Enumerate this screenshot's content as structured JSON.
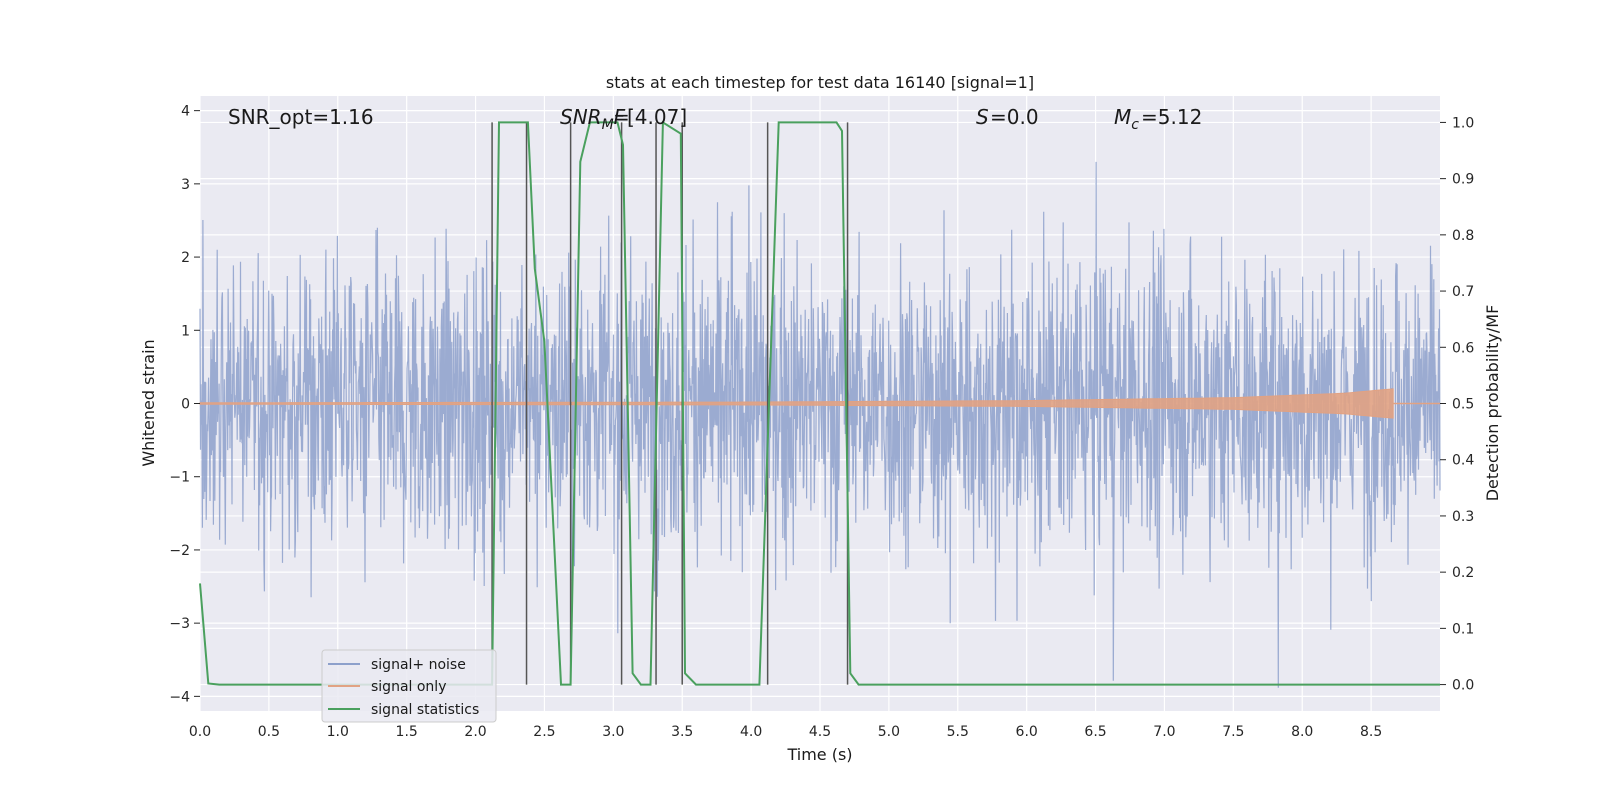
{
  "chart_data": {
    "type": "line",
    "title": "stats at each timestep for test data 16140 [signal=1]",
    "xlabel": "Time (s)",
    "ylabel": "Whitened strain",
    "ylabel_right": "Detection probability/MF",
    "xlim": [
      0.0,
      9.0
    ],
    "ylim": [
      -4.2,
      4.2
    ],
    "ylim_right": [
      -0.047,
      1.047
    ],
    "x_ticks": [
      "0.0",
      "0.5",
      "1.0",
      "1.5",
      "2.0",
      "2.5",
      "3.0",
      "3.5",
      "4.0",
      "4.5",
      "5.0",
      "5.5",
      "6.0",
      "6.5",
      "7.0",
      "7.5",
      "8.0",
      "8.5"
    ],
    "y_ticks": [
      "4",
      "3",
      "2",
      "1",
      "0",
      "−1",
      "−2",
      "−3",
      "−4"
    ],
    "y_ticks_right": [
      "1.0",
      "0.9",
      "0.8",
      "0.7",
      "0.6",
      "0.5",
      "0.4",
      "0.3",
      "0.2",
      "0.1",
      "0.0"
    ],
    "grid": true,
    "legend_placement": "lower-left",
    "annotations": {
      "snr_opt": "SNR_opt=1.16",
      "snr_mf": "[4.07]",
      "s_label": "=0.0",
      "mc_label": "=5.12"
    },
    "series": [
      {
        "name": "signal+ noise",
        "color": "#8da0cb",
        "description_kind": "noisy strain",
        "typical_amplitude": 1.4,
        "peak_amplitude": 3.3
      },
      {
        "name": "signal only",
        "color": "#e1a283",
        "envelope": [
          [
            0.0,
            0.01
          ],
          [
            4.0,
            0.02
          ],
          [
            6.0,
            0.04
          ],
          [
            7.5,
            0.08
          ],
          [
            8.3,
            0.14
          ],
          [
            8.66,
            0.2
          ]
        ]
      },
      {
        "name": "signal statistics",
        "color": "#4aa05e",
        "axis": "right",
        "x": [
          0.0,
          0.06,
          0.14,
          2.12,
          2.17,
          2.38,
          2.43,
          2.5,
          2.62,
          2.69,
          2.76,
          2.83,
          3.03,
          3.07,
          3.14,
          3.2,
          3.27,
          3.36,
          3.49,
          3.52,
          3.6,
          4.06,
          4.2,
          4.62,
          4.66,
          4.72,
          4.78,
          9.0
        ],
        "y": [
          0.18,
          0.002,
          0.0,
          0.0,
          1.0,
          1.0,
          0.74,
          0.61,
          0.0,
          0.0,
          0.93,
          1.0,
          1.0,
          0.96,
          0.02,
          0.0,
          0.0,
          1.0,
          0.98,
          0.02,
          0.0,
          0.0,
          1.0,
          1.0,
          0.985,
          0.02,
          0.0,
          0.0
        ]
      }
    ],
    "vertical_markers_x": [
      2.12,
      2.37,
      2.69,
      3.06,
      3.31,
      3.5,
      4.12,
      4.7
    ],
    "marker_color": "#555555"
  },
  "theme": {
    "axes_bg": "#eaeaf2",
    "grid": "#ffffff",
    "text": "#262626"
  }
}
